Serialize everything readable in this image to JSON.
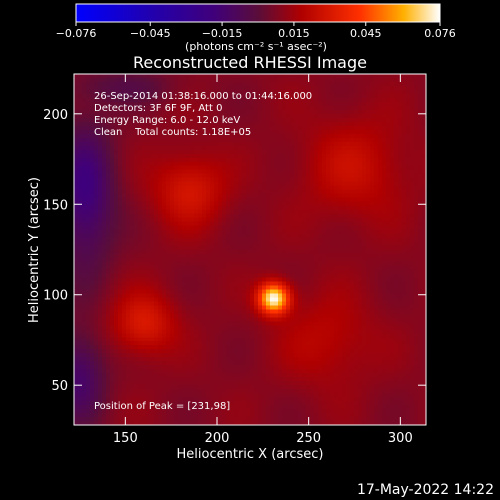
{
  "chart_data": {
    "type": "heatmap",
    "title": "Reconstructed RHESSI Image",
    "xlabel": "Heliocentric X (arcsec)",
    "ylabel": "Heliocentric Y (arcsec)",
    "xlim": [
      122,
      314
    ],
    "ylim": [
      28,
      222
    ],
    "x_ticks": [
      150,
      200,
      250,
      300
    ],
    "y_ticks": [
      50,
      100,
      150,
      200
    ],
    "colorbar": {
      "range": [
        -0.076,
        0.076
      ],
      "tick_values": [
        -0.076,
        -0.045,
        -0.015,
        0.015,
        0.045,
        0.076
      ],
      "tick_labels": [
        "−0.076",
        "−0.045",
        "−0.015",
        "0.015",
        "0.045",
        "0.076"
      ],
      "unit_label": "(photons cm⁻² s⁻¹ asec⁻²)"
    },
    "peak": {
      "x": 231,
      "y": 98,
      "value": 0.076
    },
    "info_lines": [
      "26-Sep-2014 01:38:16.000 to 01:44:16.000",
      "Detectors: 3F 6F 9F, Att 0",
      "Energy Range: 6.0 - 12.0 keV",
      "Clean    Total counts: 1.18E+05"
    ],
    "peak_label": "Position of Peak = [231,98]",
    "features": [
      {
        "x": 231,
        "y": 98,
        "sigma": 6,
        "value": 0.076
      },
      {
        "x": 160,
        "y": 84,
        "sigma": 12,
        "value": 0.022
      },
      {
        "x": 185,
        "y": 158,
        "sigma": 14,
        "value": 0.02
      },
      {
        "x": 275,
        "y": 170,
        "sigma": 20,
        "value": 0.015
      },
      {
        "x": 260,
        "y": 75,
        "sigma": 18,
        "value": 0.012
      }
    ]
  },
  "footer": {
    "timestamp": "17-May-2022 14:22"
  }
}
